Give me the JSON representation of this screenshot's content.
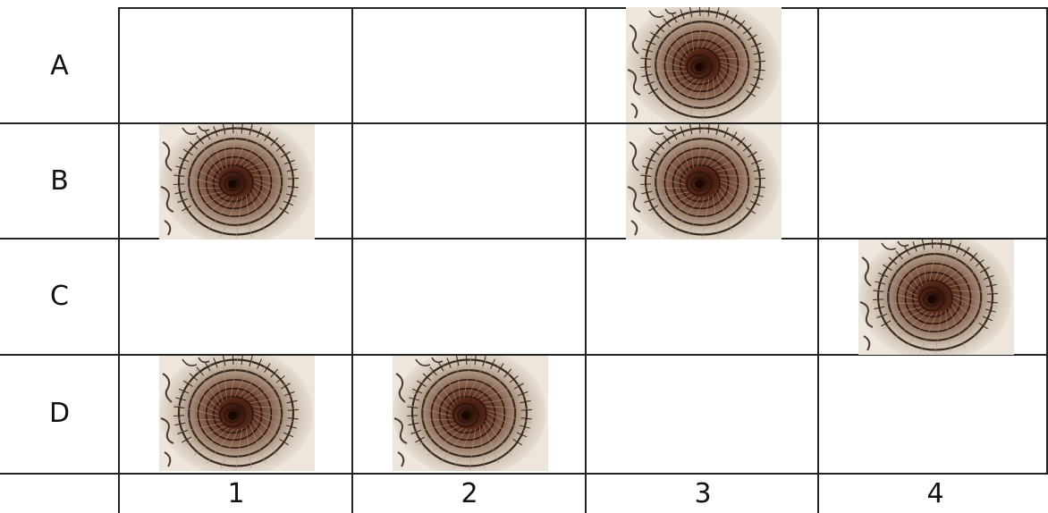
{
  "grid": {
    "row_labels": [
      "A",
      "B",
      "C",
      "D"
    ],
    "column_labels": [
      "1",
      "2",
      "3",
      "4"
    ],
    "image_icon": "spiral-staircase-photo",
    "cells_with_image": [
      {
        "row": "A",
        "column": "3"
      },
      {
        "row": "B",
        "column": "1"
      },
      {
        "row": "B",
        "column": "3"
      },
      {
        "row": "C",
        "column": "4"
      },
      {
        "row": "D",
        "column": "1"
      },
      {
        "row": "D",
        "column": "2"
      }
    ]
  }
}
